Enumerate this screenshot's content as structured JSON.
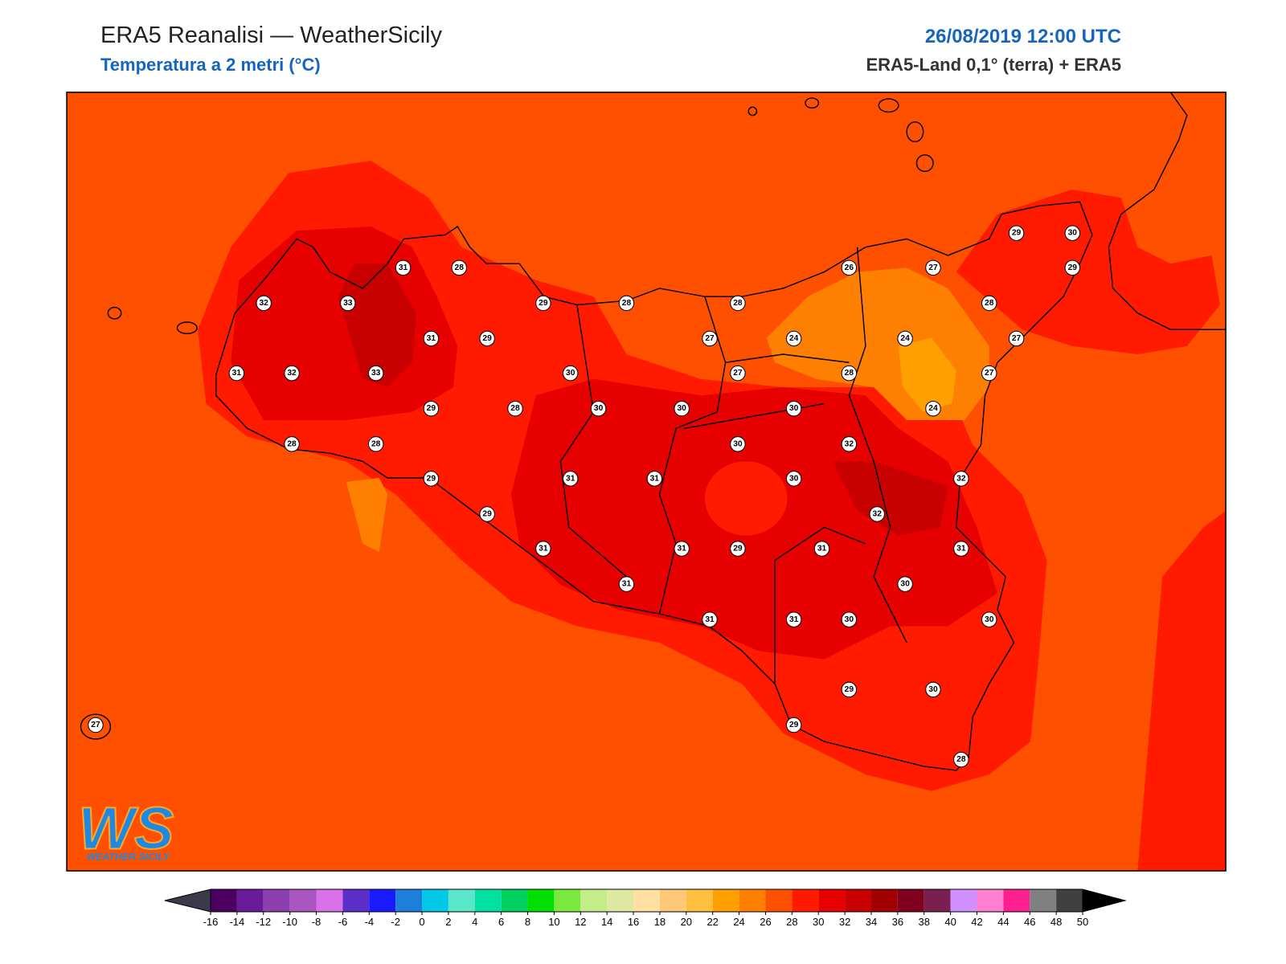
{
  "header": {
    "title": "ERA5 Reanalisi — WeatherSicily",
    "subtitle": "Temperatura a 2 metri (°C)",
    "date": "26/08/2019 12:00 UTC",
    "source": "ERA5-Land 0,1° (terra) + ERA5"
  },
  "logo": {
    "mark": "WS",
    "text": "WEATHER SICILY"
  },
  "stations": [
    31,
    28,
    32,
    33,
    29,
    28,
    28,
    31,
    29,
    27,
    24,
    31,
    32,
    33,
    30,
    27,
    28,
    29,
    28,
    30,
    30,
    30,
    28,
    28,
    30,
    32,
    29,
    31,
    31,
    30,
    29,
    32,
    31,
    31,
    29,
    31,
    31,
    30,
    31,
    31,
    30,
    29,
    30,
    29,
    28,
    27,
    29,
    30,
    26,
    27,
    29,
    28,
    24,
    27,
    27,
    24,
    32,
    31,
    30
  ],
  "colorbar": {
    "ticks": [
      -16,
      -14,
      -12,
      -10,
      -8,
      -6,
      -4,
      -2,
      0,
      2,
      4,
      6,
      8,
      10,
      12,
      14,
      16,
      18,
      20,
      22,
      24,
      26,
      28,
      30,
      32,
      34,
      36,
      38,
      40,
      42,
      44,
      46,
      48,
      50
    ],
    "colors": [
      "#4b0060",
      "#6a1b9a",
      "#8e3fae",
      "#a855c0",
      "#d972e8",
      "#5c2fc9",
      "#1a1aff",
      "#1e7fdb",
      "#00c8e6",
      "#5ae6c8",
      "#00e0a0",
      "#00d060",
      "#00e000",
      "#7be840",
      "#c4ec88",
      "#dfe8a0",
      "#ffe0a0",
      "#ffc878",
      "#ffc040",
      "#ffa000",
      "#ff8000",
      "#ff5000",
      "#ff1a00",
      "#e60000",
      "#c80000",
      "#a00000",
      "#800020",
      "#7a2050",
      "#d090ff",
      "#ff80d0",
      "#ff2090",
      "#808080",
      "#404040"
    ],
    "under": "#3a3a4a",
    "over": "#000000"
  }
}
